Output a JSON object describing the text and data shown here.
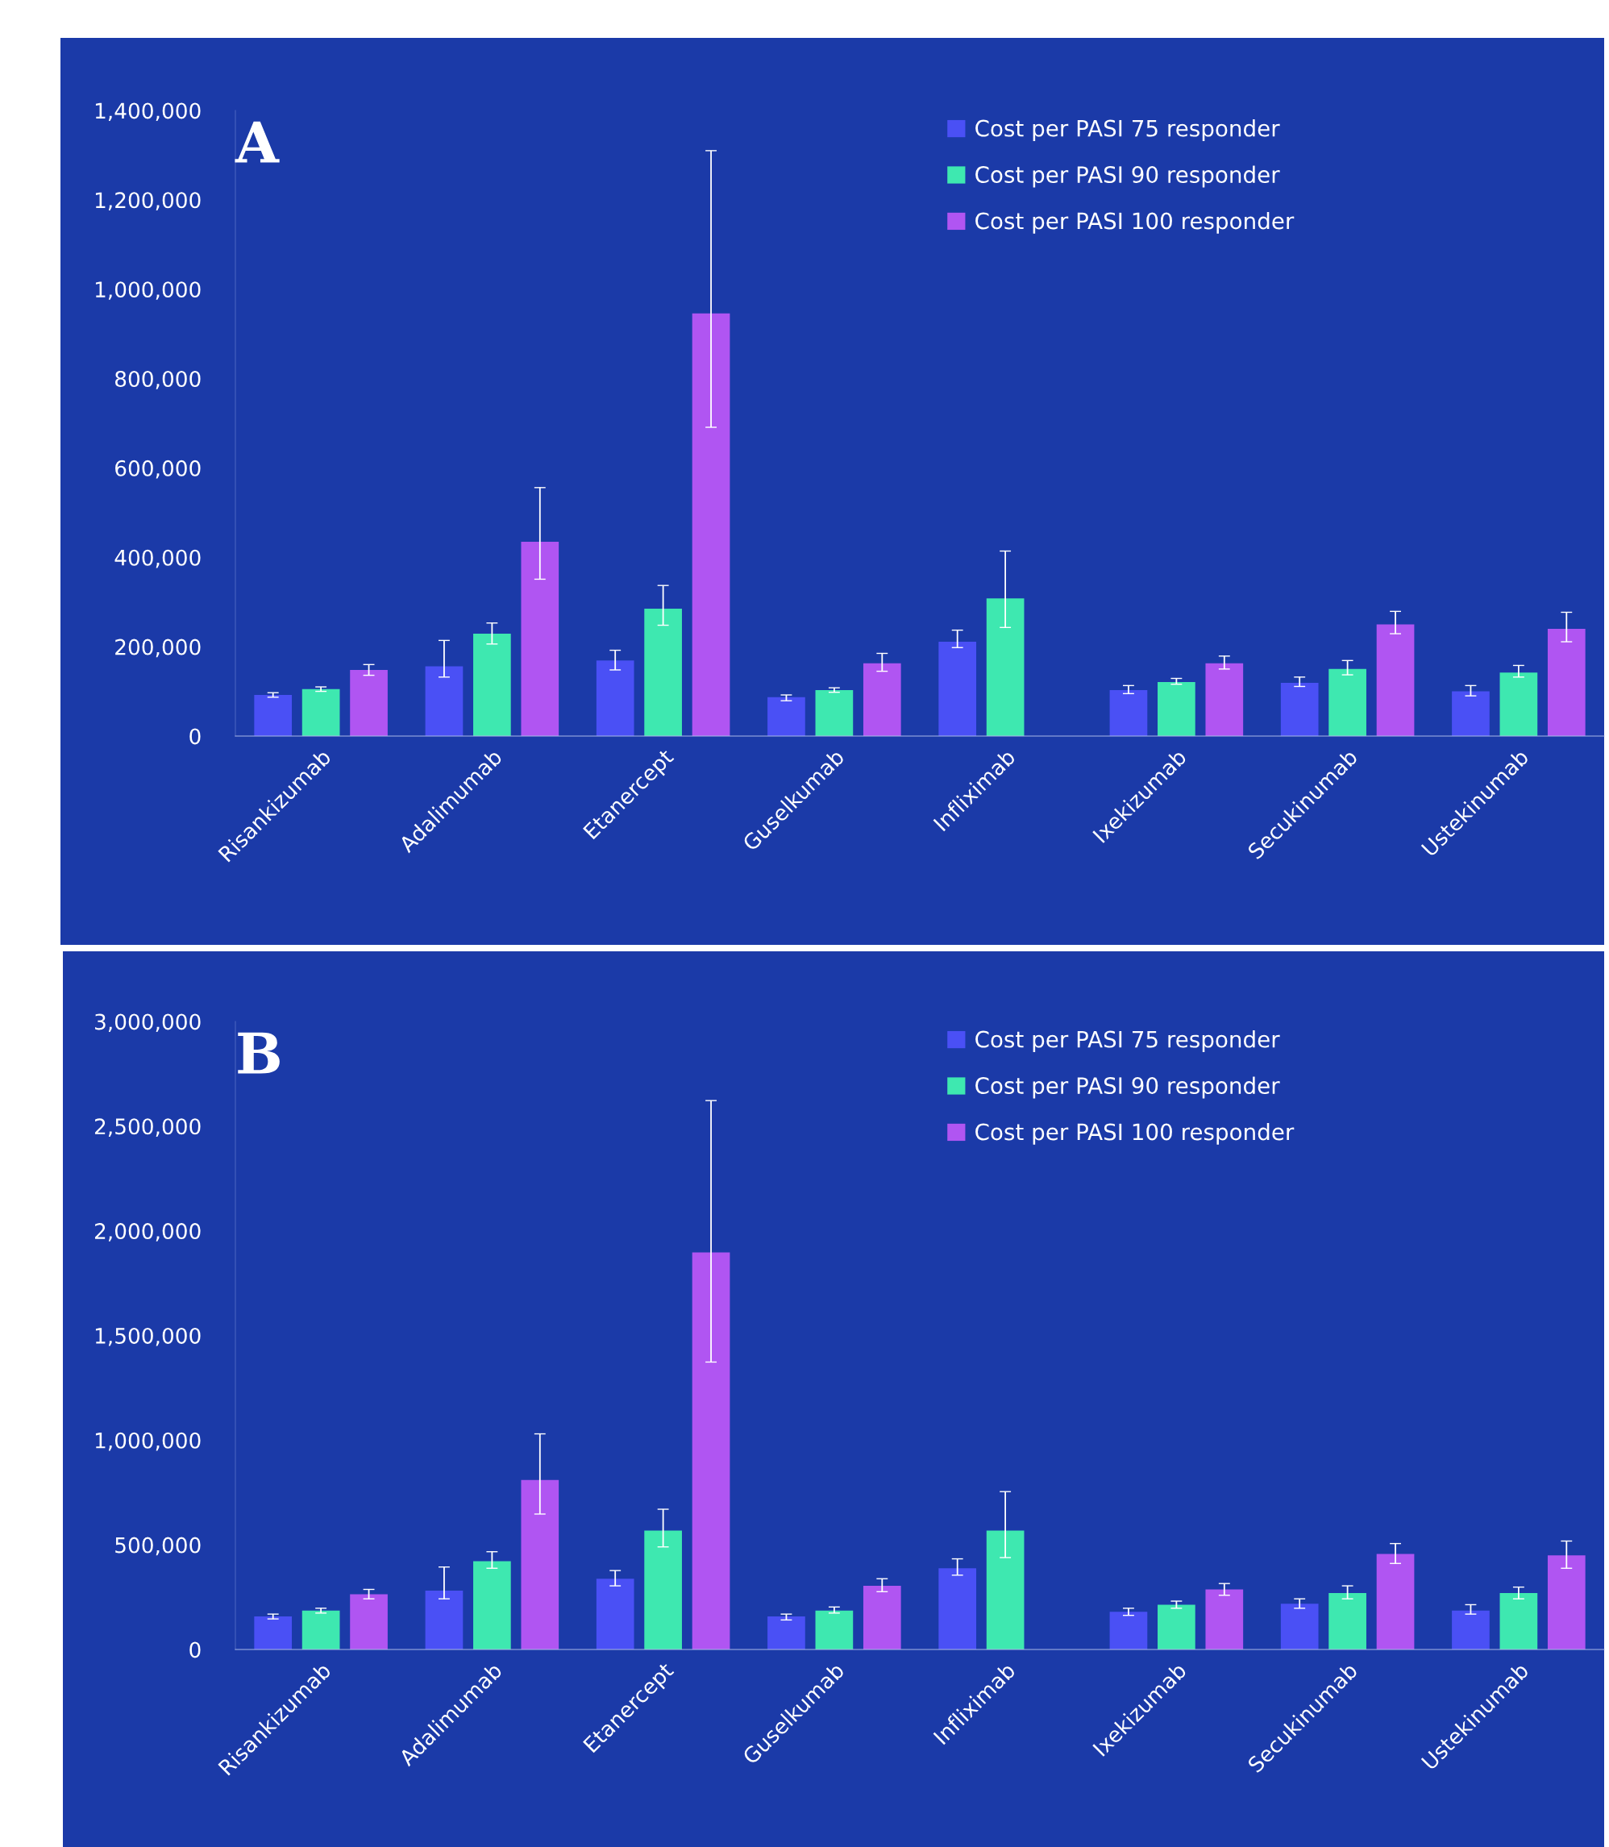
{
  "chart_data": [
    {
      "type": "bar",
      "categories": [
        "Risankizumab",
        "Adalimumab",
        "Etanercept",
        "Guselkumab",
        "Infliximab",
        "Ixekizumab",
        "Secukinumab",
        "Ustekinumab"
      ],
      "ylim": [
        0,
        1400000
      ],
      "yticks": [
        {
          "value": 0,
          "label": "0"
        },
        {
          "value": 200000,
          "label": "200,000"
        },
        {
          "value": 400000,
          "label": "400,000"
        },
        {
          "value": 600000,
          "label": "600,000"
        },
        {
          "value": 800000,
          "label": "800,000"
        },
        {
          "value": 1000000,
          "label": "1,000,000"
        },
        {
          "value": 1200000,
          "label": "1,200,000"
        },
        {
          "value": 1400000,
          "label": "1,400,000"
        }
      ],
      "grid": false,
      "legend": "top right",
      "annotations": [
        "A"
      ],
      "series": [
        {
          "name": "Cost per PASI 75 responder",
          "color": "#4a50f5",
          "values": [
            92000,
            156000,
            169000,
            87000,
            211000,
            103000,
            119000,
            100000
          ],
          "errors": [
            [
              87000,
              97000
            ],
            [
              132000,
              214000
            ],
            [
              148000,
              192000
            ],
            [
              79000,
              92000
            ],
            [
              198000,
              237000
            ],
            [
              95000,
              113000
            ],
            [
              111000,
              132000
            ],
            [
              90000,
              113000
            ]
          ]
        },
        {
          "name": "Cost per PASI 90 responder",
          "color": "#3ee8b0",
          "values": [
            105000,
            229000,
            285000,
            103000,
            308000,
            121000,
            150000,
            142000
          ],
          "errors": [
            [
              100000,
              110000
            ],
            [
              206000,
              253000
            ],
            [
              248000,
              337000
            ],
            [
              98000,
              108000
            ],
            [
              243000,
              414000
            ],
            [
              116000,
              129000
            ],
            [
              137000,
              169000
            ],
            [
              132000,
              158000
            ]
          ]
        },
        {
          "name": "Cost per PASI 100 responder",
          "color": "#b055f2",
          "values": [
            148000,
            435000,
            946000,
            163000,
            null,
            163000,
            250000,
            240000
          ],
          "errors": [
            [
              136000,
              160000
            ],
            [
              351000,
              556000
            ],
            [
              691000,
              1310000
            ],
            [
              145000,
              185000
            ],
            null,
            [
              150000,
              179000
            ],
            [
              229000,
              279000
            ],
            [
              211000,
              277000
            ]
          ]
        }
      ]
    },
    {
      "type": "bar",
      "categories": [
        "Risankizumab",
        "Adalimumab",
        "Etanercept",
        "Guselkumab",
        "Infliximab",
        "Ixekizumab",
        "Secukinumab",
        "Ustekinumab"
      ],
      "ylim": [
        0,
        3000000
      ],
      "yticks": [
        {
          "value": 0,
          "label": "0"
        },
        {
          "value": 500000,
          "label": "500,000"
        },
        {
          "value": 1000000,
          "label": "1,000,000"
        },
        {
          "value": 1500000,
          "label": "1,500,000"
        },
        {
          "value": 2000000,
          "label": "2,000,000"
        },
        {
          "value": 2500000,
          "label": "2,500,000"
        },
        {
          "value": 3000000,
          "label": "3,000,000"
        }
      ],
      "grid": false,
      "legend": "top right",
      "annotations": [
        "B"
      ],
      "series": [
        {
          "name": "Cost per PASI 75 responder",
          "color": "#4a50f5",
          "values": [
            158000,
            281000,
            338000,
            158000,
            388000,
            180000,
            219000,
            186000
          ],
          "errors": [
            [
              146000,
              169000
            ],
            [
              242000,
              394000
            ],
            [
              304000,
              377000
            ],
            [
              141000,
              169000
            ],
            [
              355000,
              433000
            ],
            [
              163000,
              197000
            ],
            [
              197000,
              242000
            ],
            [
              169000,
              214000
            ]
          ]
        },
        {
          "name": "Cost per PASI 90 responder",
          "color": "#3ee8b0",
          "values": [
            186000,
            422000,
            568000,
            186000,
            568000,
            214000,
            270000,
            270000
          ],
          "errors": [
            [
              174000,
              197000
            ],
            [
              388000,
              467000
            ],
            [
              490000,
              670000
            ],
            [
              174000,
              203000
            ],
            [
              439000,
              754000
            ],
            [
              197000,
              231000
            ],
            [
              242000,
              304000
            ],
            [
              242000,
              298000
            ]
          ]
        },
        {
          "name": "Cost per PASI 100 responder",
          "color": "#b055f2",
          "values": [
            264000,
            810000,
            1897000,
            304000,
            null,
            287000,
            456000,
            450000
          ],
          "errors": [
            [
              242000,
              287000
            ],
            [
              647000,
              1030000
            ],
            [
              1373000,
              2622000
            ],
            [
              276000,
              338000
            ],
            null,
            [
              259000,
              315000
            ],
            [
              411000,
              506000
            ],
            [
              388000,
              518000
            ]
          ]
        }
      ]
    }
  ]
}
